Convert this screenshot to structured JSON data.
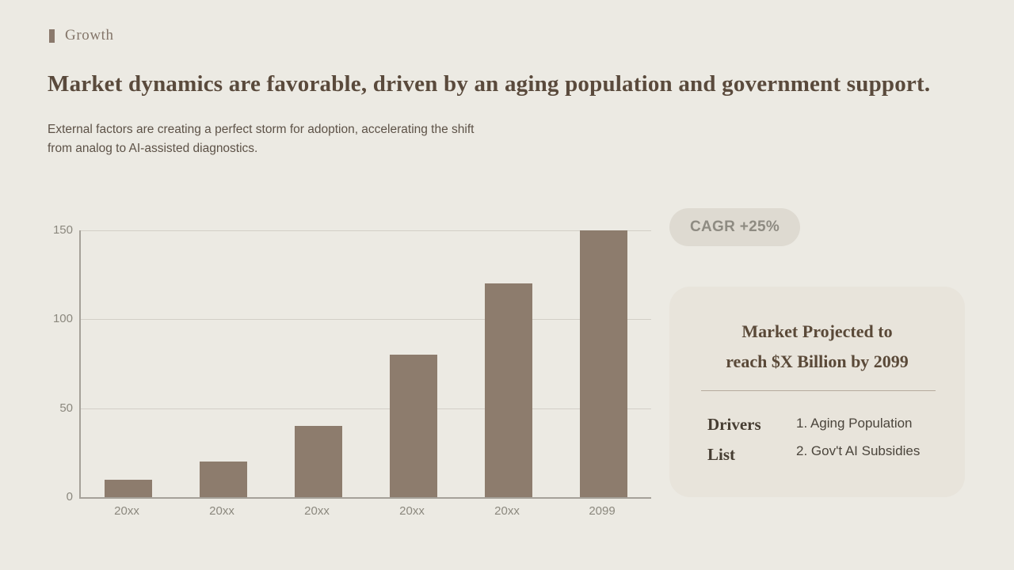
{
  "page": {
    "eyebrow_label": "Growth",
    "title": "Market dynamics are favorable, driven by an aging population and government support.",
    "subtitle_line1": "External factors are creating a perfect storm for adoption, accelerating the shift",
    "subtitle_line2": "from analog to AI-assisted diagnostics."
  },
  "badge": {
    "label": "CAGR +25%"
  },
  "chart_data": {
    "type": "bar",
    "categories": [
      "20xx",
      "20xx",
      "20xx",
      "20xx",
      "20xx",
      "2099"
    ],
    "values": [
      10,
      20,
      40,
      80,
      120,
      150
    ],
    "title": "",
    "xlabel": "",
    "ylabel": "",
    "ylim": [
      0,
      150
    ],
    "yticks": [
      0,
      50,
      100,
      150
    ],
    "grid": true,
    "legend": "none",
    "bar_color": "#8D7C6D",
    "axis_color": "#A5A199",
    "grid_color": "#D3CFC7",
    "tick_label_color": "#8B887E"
  },
  "card": {
    "title_line1": "Market Projected to",
    "title_line2": "reach $X Billion by 2099",
    "drivers_label_line1": "Drivers",
    "drivers_label_line2": "List",
    "items": [
      "1. Aging Population",
      "2. Gov't AI Subsidies"
    ]
  },
  "colors": {
    "background": "#ECEAE3",
    "card_background": "#E8E4DB",
    "pill_background": "#DEDAD1",
    "accent_brown": "#8D7C6D",
    "title_text": "#5A4A3C"
  }
}
